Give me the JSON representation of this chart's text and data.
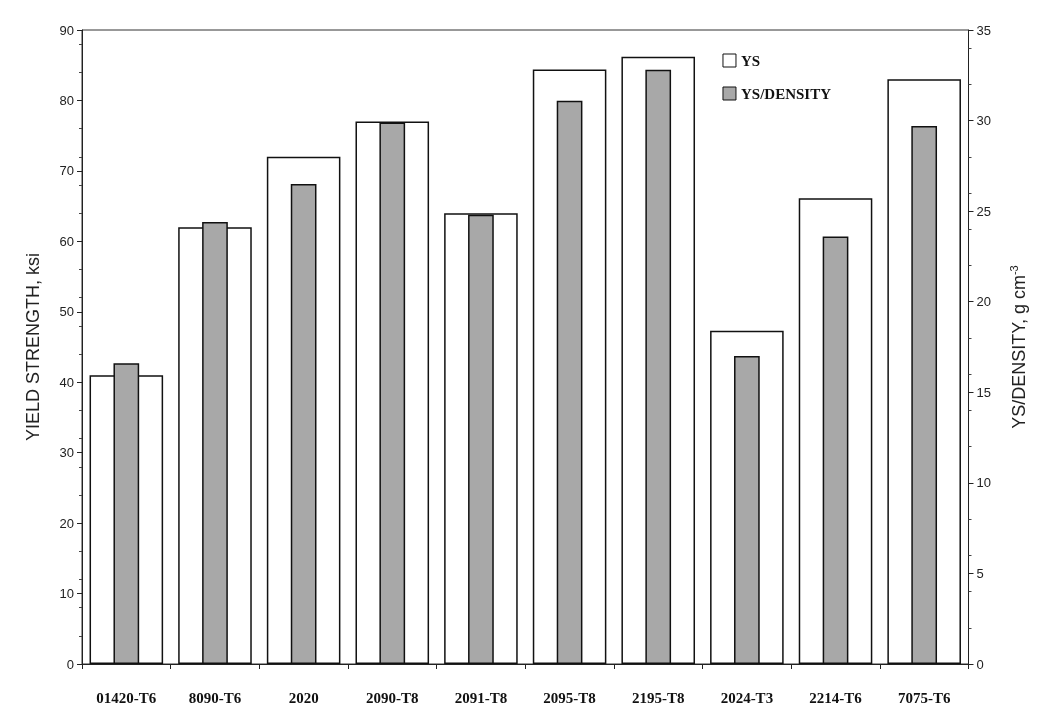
{
  "chart_data": {
    "type": "bar",
    "categories": [
      "01420-T6",
      "8090-T6",
      "2020",
      "2090-T8",
      "2091-T8",
      "2095-T8",
      "2195-T8",
      "2024-T3",
      "2214-T6",
      "7075-T6"
    ],
    "series": [
      {
        "name": "YS",
        "color": "#ffffff",
        "values": [
          41,
          62,
          72,
          77,
          64,
          84.4,
          86.2,
          47.3,
          66.1,
          83
        ]
      },
      {
        "name": "YS/DENSITY",
        "color": "#a8a8a8",
        "axis": "y2",
        "values": [
          16.6,
          24.4,
          26.5,
          29.9,
          24.8,
          31.1,
          32.8,
          17,
          23.6,
          29.7
        ]
      }
    ],
    "ylabel": "YIELD STRENGTH, ksi",
    "y2label": "YS/DENSITY, g cm$^{-3}$",
    "ylim": [
      0,
      90
    ],
    "yticks": [
      0,
      10,
      20,
      30,
      40,
      50,
      60,
      70,
      80,
      90
    ],
    "y2lim": [
      0,
      35
    ],
    "y2ticks": [
      0,
      5,
      10,
      15,
      20,
      25,
      30,
      35
    ],
    "legend": "top right",
    "grid": false
  }
}
